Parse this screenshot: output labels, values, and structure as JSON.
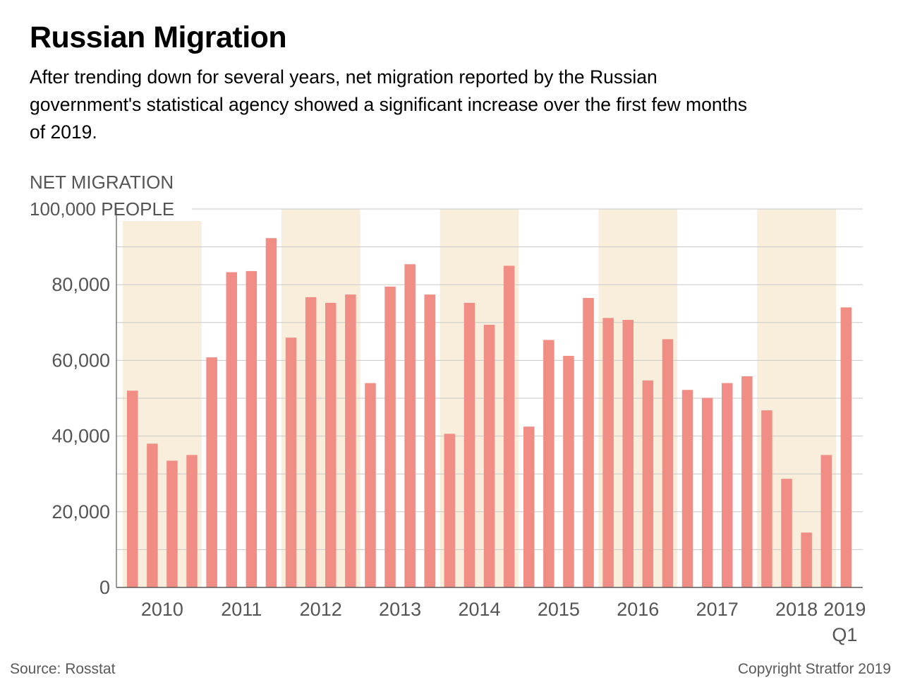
{
  "title": "Russian Migration",
  "subtitle": "After trending down for several years, net migration reported by the Russian government's statistical agency showed a significant increase over the first few months of 2019.",
  "source": "Source: Rosstat",
  "copyright": "Copyright Stratfor 2019",
  "colors": {
    "bar": "#f08d84",
    "band": "#f8eedb",
    "grid": "#c8c8c8",
    "axis": "#5a5a5a",
    "axis_text": "#555555",
    "background": "#ffffff"
  },
  "chart_data": {
    "type": "bar",
    "ylabel": "NET MIGRATION",
    "top_tick_label": "100,000 PEOPLE",
    "ylim": [
      0,
      100000
    ],
    "yticks": [
      0,
      20000,
      40000,
      60000,
      80000,
      100000
    ],
    "ytick_labels": [
      "0",
      "20,000",
      "40,000",
      "60,000",
      "80,000",
      "100,000 PEOPLE"
    ],
    "grid": true,
    "alternating_year_bands": true,
    "years": [
      {
        "label": "2010",
        "values": [
          52000,
          38000,
          33500,
          35000
        ]
      },
      {
        "label": "2011",
        "values": [
          60800,
          83300,
          83600,
          92300
        ]
      },
      {
        "label": "2012",
        "values": [
          66000,
          76700,
          75200,
          77400
        ]
      },
      {
        "label": "2013",
        "values": [
          54000,
          79500,
          85400,
          77400
        ]
      },
      {
        "label": "2014",
        "values": [
          40600,
          75200,
          69400,
          85000
        ]
      },
      {
        "label": "2015",
        "values": [
          42500,
          65400,
          61200,
          76500
        ]
      },
      {
        "label": "2016",
        "values": [
          71200,
          70700,
          54700,
          65600
        ]
      },
      {
        "label": "2017",
        "values": [
          52200,
          50100,
          54000,
          55800
        ]
      },
      {
        "label": "2018",
        "values": [
          46800,
          28700,
          14500,
          35000
        ]
      },
      {
        "label": "2019",
        "sublabel": "Q1",
        "values": [
          74000
        ]
      }
    ]
  }
}
